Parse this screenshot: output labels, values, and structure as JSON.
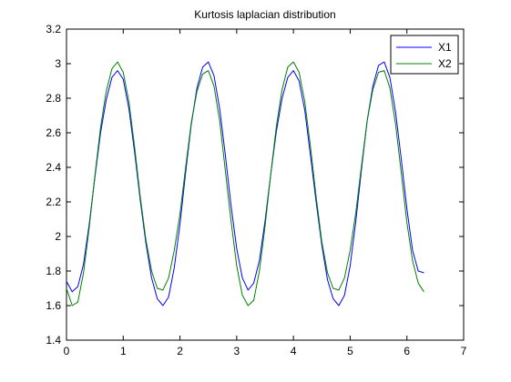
{
  "chart_data": {
    "type": "line",
    "title": "Kurtosis laplacian distribution",
    "xlabel": "",
    "ylabel": "",
    "xlim": [
      0,
      7
    ],
    "ylim": [
      1.4,
      3.2
    ],
    "xticks": [
      0,
      1,
      2,
      3,
      4,
      5,
      6,
      7
    ],
    "yticks": [
      1.4,
      1.6,
      1.8,
      2,
      2.2,
      2.4,
      2.6,
      2.8,
      3,
      3.2
    ],
    "xtick_labels": [
      "0",
      "1",
      "2",
      "3",
      "4",
      "5",
      "6",
      "7"
    ],
    "ytick_labels": [
      "1.4",
      "1.6",
      "1.8",
      "2",
      "2.2",
      "2.4",
      "2.6",
      "2.8",
      "3",
      "3.2"
    ],
    "grid": false,
    "legend_position": "top-right",
    "series": [
      {
        "name": "X1",
        "color": "#0000ff",
        "x": [
          0.0,
          0.1,
          0.2,
          0.3,
          0.4,
          0.5,
          0.6,
          0.7,
          0.8,
          0.9,
          1.0,
          1.1,
          1.2,
          1.3,
          1.4,
          1.5,
          1.6,
          1.7,
          1.8,
          1.9,
          2.0,
          2.1,
          2.2,
          2.3,
          2.4,
          2.5,
          2.6,
          2.7,
          2.8,
          2.9,
          3.0,
          3.1,
          3.2,
          3.3,
          3.4,
          3.5,
          3.6,
          3.7,
          3.8,
          3.9,
          4.0,
          4.1,
          4.2,
          4.3,
          4.4,
          4.5,
          4.6,
          4.7,
          4.8,
          4.9,
          5.0,
          5.1,
          5.2,
          5.3,
          5.4,
          5.5,
          5.6,
          5.7,
          5.8,
          5.9,
          6.0,
          6.1,
          6.2,
          6.3
        ],
        "y": [
          1.74,
          1.68,
          1.71,
          1.84,
          2.07,
          2.34,
          2.6,
          2.79,
          2.92,
          2.96,
          2.91,
          2.74,
          2.49,
          2.21,
          1.96,
          1.76,
          1.64,
          1.6,
          1.65,
          1.82,
          2.07,
          2.37,
          2.65,
          2.86,
          2.98,
          3.01,
          2.93,
          2.74,
          2.47,
          2.18,
          1.93,
          1.76,
          1.69,
          1.73,
          1.86,
          2.09,
          2.36,
          2.61,
          2.8,
          2.92,
          2.96,
          2.9,
          2.73,
          2.47,
          2.2,
          1.95,
          1.75,
          1.64,
          1.6,
          1.66,
          1.83,
          2.09,
          2.39,
          2.67,
          2.87,
          2.99,
          3.01,
          2.92,
          2.72,
          2.45,
          2.16,
          1.92,
          1.8,
          1.79
        ]
      },
      {
        "name": "X2",
        "color": "#008000",
        "x": [
          0.0,
          0.1,
          0.2,
          0.3,
          0.4,
          0.5,
          0.6,
          0.7,
          0.8,
          0.9,
          1.0,
          1.1,
          1.2,
          1.3,
          1.4,
          1.5,
          1.6,
          1.7,
          1.8,
          1.9,
          2.0,
          2.1,
          2.2,
          2.3,
          2.4,
          2.5,
          2.6,
          2.7,
          2.8,
          2.9,
          3.0,
          3.1,
          3.2,
          3.3,
          3.4,
          3.5,
          3.6,
          3.7,
          3.8,
          3.9,
          4.0,
          4.1,
          4.2,
          4.3,
          4.4,
          4.5,
          4.6,
          4.7,
          4.8,
          4.9,
          5.0,
          5.1,
          5.2,
          5.3,
          5.4,
          5.5,
          5.6,
          5.7,
          5.8,
          5.9,
          6.0,
          6.1,
          6.2,
          6.3
        ],
        "y": [
          1.7,
          1.6,
          1.62,
          1.79,
          2.05,
          2.35,
          2.63,
          2.84,
          2.97,
          3.01,
          2.95,
          2.78,
          2.52,
          2.23,
          1.98,
          1.8,
          1.7,
          1.69,
          1.76,
          1.92,
          2.13,
          2.4,
          2.66,
          2.84,
          2.94,
          2.96,
          2.87,
          2.67,
          2.38,
          2.09,
          1.83,
          1.66,
          1.6,
          1.63,
          1.8,
          2.06,
          2.36,
          2.64,
          2.85,
          2.98,
          3.01,
          2.95,
          2.78,
          2.52,
          2.23,
          1.97,
          1.79,
          1.7,
          1.69,
          1.76,
          1.92,
          2.14,
          2.41,
          2.67,
          2.85,
          2.95,
          2.96,
          2.86,
          2.65,
          2.37,
          2.08,
          1.86,
          1.73,
          1.68
        ]
      }
    ]
  }
}
